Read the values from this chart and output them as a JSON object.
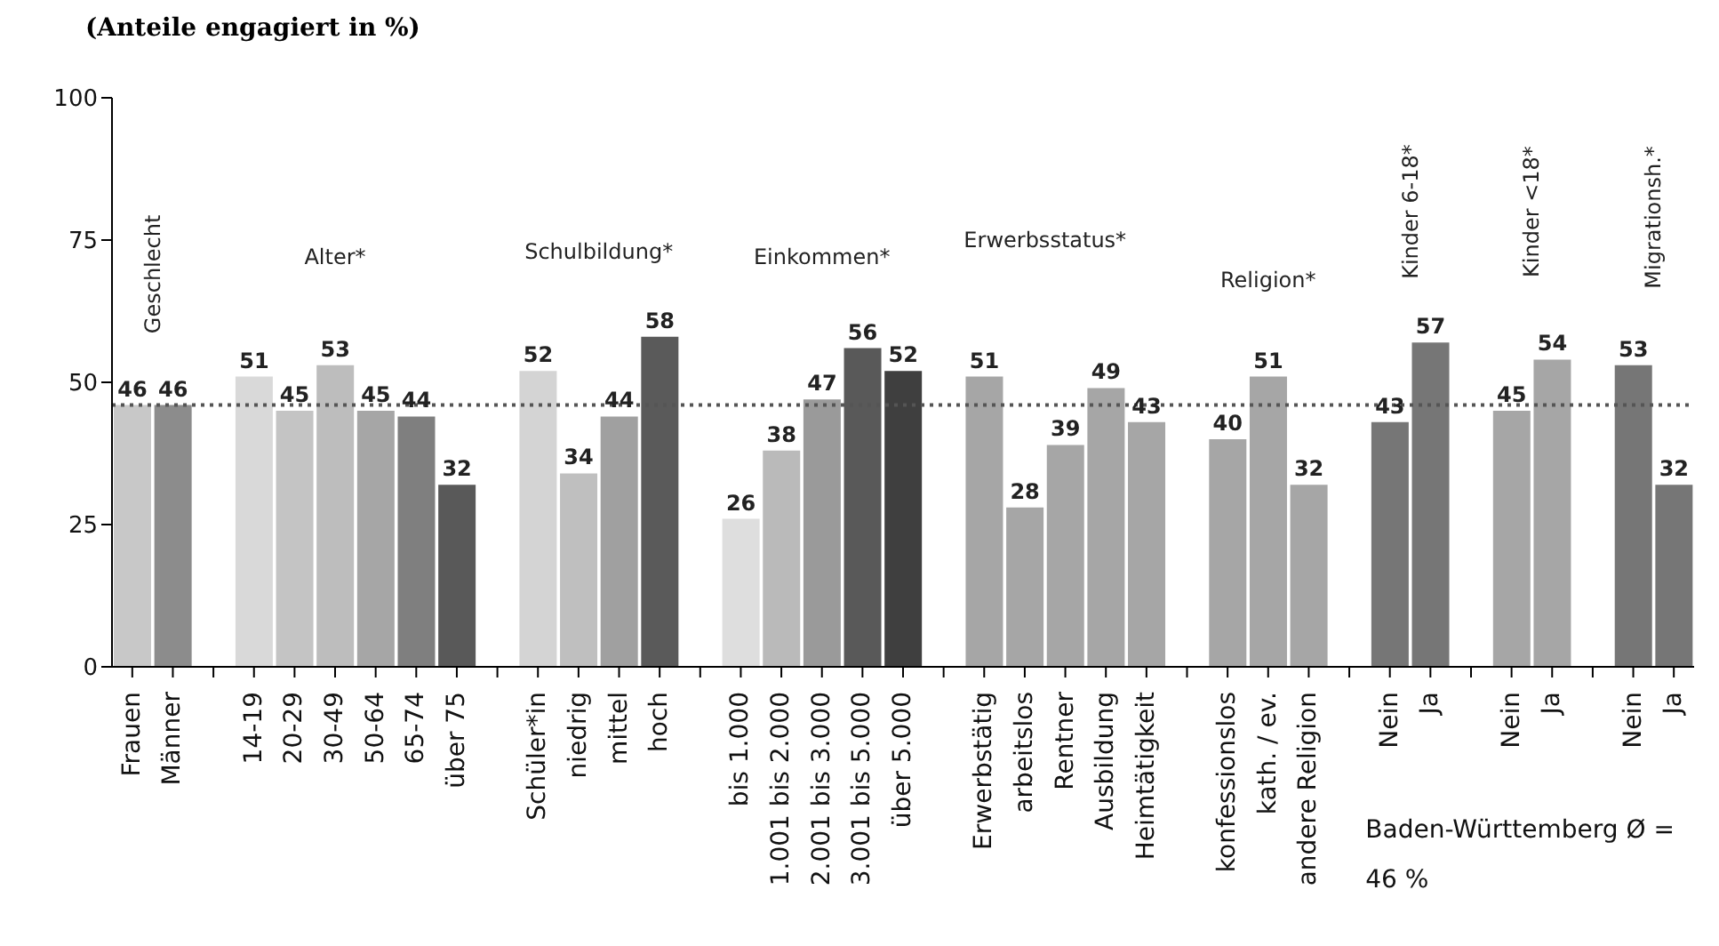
{
  "chart_data": {
    "type": "bar",
    "title": "(Anteile engagiert in %)",
    "categories": [
      "Frauen",
      "Männer",
      null,
      "14-19",
      "20-29",
      "30-49",
      "50-64",
      "65-74",
      "über 75",
      null,
      "Schüler*in",
      "niedrig",
      "mittel",
      "hoch",
      null,
      "bis 1.000",
      "1.001 bis 2.000",
      "2.001 bis 3.000",
      "3.001 bis 5.000",
      "über 5.000",
      null,
      "Erwerbstätig",
      "arbeitslos",
      "Rentner",
      "Ausbildung",
      "Heimtätigkeit",
      null,
      "konfessionslos",
      "kath. / ev.",
      "andere Religion",
      null,
      "Nein",
      "Ja",
      null,
      "Nein",
      "Ja",
      null,
      "Nein",
      "Ja"
    ],
    "values": [
      46,
      46,
      null,
      51,
      45,
      53,
      45,
      44,
      32,
      null,
      52,
      34,
      44,
      58,
      null,
      26,
      38,
      47,
      56,
      52,
      null,
      51,
      28,
      39,
      49,
      43,
      null,
      40,
      51,
      32,
      null,
      43,
      57,
      null,
      45,
      54,
      null,
      53,
      32
    ],
    "colors": [
      "#c8c8c8",
      "#8c8c8c",
      null,
      "#d9d9d9",
      "#c4c4c4",
      "#bdbdbd",
      "#a6a6a6",
      "#7f7f7f",
      "#595959",
      null,
      "#d4d4d4",
      "#bfbfbf",
      "#a0a0a0",
      "#5a5a5a",
      null,
      "#dedede",
      "#bababa",
      "#9a9a9a",
      "#595959",
      "#3f3f3f",
      null,
      "#a6a6a6",
      "#a6a6a6",
      "#a6a6a6",
      "#a6a6a6",
      "#a6a6a6",
      null,
      "#a6a6a6",
      "#a6a6a6",
      "#a6a6a6",
      null,
      "#767676",
      "#767676",
      null,
      "#a6a6a6",
      "#a6a6a6",
      null,
      "#767676",
      "#767676"
    ],
    "ylim": [
      0,
      100
    ],
    "yticks": [
      0,
      25,
      50,
      75,
      100
    ],
    "grid": false,
    "data_labels": true,
    "ref_lines": [
      {
        "axis": "y",
        "value": 46,
        "line_style": "dotted",
        "color": "#555555"
      }
    ],
    "annotations": [
      "Geschlecht",
      "Alter*",
      "Schulbildung*",
      "Einkommen*",
      "Erwerbsstatus*",
      "Religion*",
      "Kinder 6-18*",
      "Kinder <18*",
      "Migrationsh.*",
      "Baden-Württemberg Ø = 46 %"
    ]
  }
}
